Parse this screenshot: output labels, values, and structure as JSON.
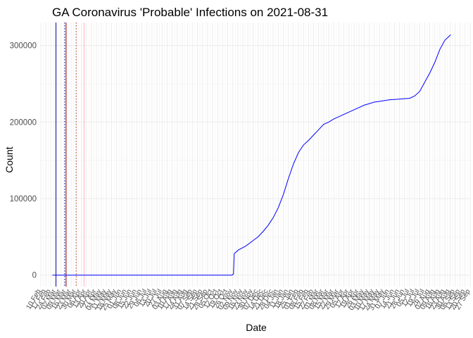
{
  "chart_data": {
    "type": "line",
    "title": "GA Coronavirus 'Probable' Infections on 2021-08-31",
    "xlabel": "Date",
    "ylabel": "Count",
    "x_range": [
      "2020-02-10",
      "2021-09-27"
    ],
    "ylim": [
      -15000,
      330000
    ],
    "y_ticks": [
      0,
      100000,
      200000,
      300000
    ],
    "y_tick_labels": [
      "0",
      "100000",
      "200000",
      "300000"
    ],
    "x_tick_labels": [
      "10 Feb",
      "17 Feb",
      "24 Feb",
      "02 Mar",
      "09 Mar",
      "16 Mar",
      "23 Mar",
      "30 Mar",
      "06 Apr",
      "13 Apr",
      "20 Apr",
      "27 Apr",
      "04 May",
      "11 May",
      "18 May",
      "25 May",
      "01 Jun",
      "08 Jun",
      "15 Jun",
      "22 Jun",
      "29 Jun",
      "06 Jul",
      "13 Jul",
      "20 Jul",
      "27 Jul",
      "03 Aug",
      "10 Aug",
      "17 Aug",
      "24 Aug",
      "31 Aug",
      "07 Sep",
      "14 Sep",
      "21 Sep",
      "28 Sep",
      "05 Oct",
      "12 Oct",
      "19 Oct",
      "26 Oct",
      "02 Nov",
      "09 Nov",
      "16 Nov",
      "23 Nov",
      "30 Nov",
      "07 Dec",
      "14 Dec",
      "21 Dec",
      "28 Dec",
      "04 Jan",
      "11 Jan",
      "18 Jan",
      "25 Jan",
      "01 Feb",
      "08 Feb",
      "15 Feb",
      "22 Feb",
      "01 Mar",
      "08 Mar",
      "15 Mar",
      "22 Mar",
      "29 Mar",
      "05 Apr",
      "12 Apr",
      "19 Apr",
      "26 Apr",
      "03 May",
      "10 May",
      "17 May",
      "24 May",
      "31 May",
      "07 Jun",
      "14 Jun",
      "21 Jun",
      "28 Jun",
      "05 Jul",
      "12 Jul",
      "19 Jul",
      "26 Jul",
      "02 Aug",
      "09 Aug",
      "16 Aug",
      "23 Aug",
      "30 Aug",
      "06 Sep",
      "13 Sep",
      "20 Sep",
      "27 Sep"
    ],
    "grid": true,
    "reference_lines": [
      {
        "date": "2020-03-02",
        "color": "#00008b",
        "style": "solid"
      },
      {
        "date": "2020-03-14",
        "color": "#00008b",
        "style": "dotted"
      },
      {
        "date": "2020-03-16",
        "color": "#8b0000",
        "style": "solid"
      },
      {
        "date": "2020-03-30",
        "color": "#b22222",
        "style": "dotted"
      },
      {
        "date": "2020-04-10",
        "color": "#ffb6c1",
        "style": "solid"
      }
    ],
    "series": [
      {
        "color": "#0000ff",
        "points": [
          [
            "2020-02-26",
            0
          ],
          [
            "2020-11-01",
            0
          ],
          [
            "2020-11-03",
            1500
          ],
          [
            "2020-11-04",
            28000
          ],
          [
            "2020-11-10",
            33000
          ],
          [
            "2020-11-20",
            38000
          ],
          [
            "2020-11-30",
            45000
          ],
          [
            "2020-12-07",
            50000
          ],
          [
            "2020-12-14",
            57000
          ],
          [
            "2020-12-21",
            65000
          ],
          [
            "2020-12-28",
            75000
          ],
          [
            "2021-01-04",
            88000
          ],
          [
            "2021-01-11",
            105000
          ],
          [
            "2021-01-18",
            126000
          ],
          [
            "2021-01-25",
            145000
          ],
          [
            "2021-02-01",
            160000
          ],
          [
            "2021-02-08",
            170000
          ],
          [
            "2021-02-15",
            176000
          ],
          [
            "2021-02-22",
            183000
          ],
          [
            "2021-03-01",
            190000
          ],
          [
            "2021-03-08",
            197000
          ],
          [
            "2021-03-15",
            200000
          ],
          [
            "2021-03-22",
            204000
          ],
          [
            "2021-03-29",
            207000
          ],
          [
            "2021-04-05",
            210000
          ],
          [
            "2021-04-12",
            213000
          ],
          [
            "2021-04-19",
            216000
          ],
          [
            "2021-04-26",
            219000
          ],
          [
            "2021-05-03",
            222000
          ],
          [
            "2021-05-10",
            224000
          ],
          [
            "2021-05-17",
            226000
          ],
          [
            "2021-05-24",
            227000
          ],
          [
            "2021-05-31",
            228000
          ],
          [
            "2021-06-07",
            229000
          ],
          [
            "2021-06-14",
            229500
          ],
          [
            "2021-06-21",
            230000
          ],
          [
            "2021-06-28",
            230500
          ],
          [
            "2021-07-05",
            231000
          ],
          [
            "2021-07-12",
            234000
          ],
          [
            "2021-07-19",
            240000
          ],
          [
            "2021-07-26",
            252000
          ],
          [
            "2021-08-02",
            264000
          ],
          [
            "2021-08-09",
            278000
          ],
          [
            "2021-08-16",
            295000
          ],
          [
            "2021-08-23",
            307000
          ],
          [
            "2021-08-31",
            314000
          ]
        ]
      }
    ]
  }
}
